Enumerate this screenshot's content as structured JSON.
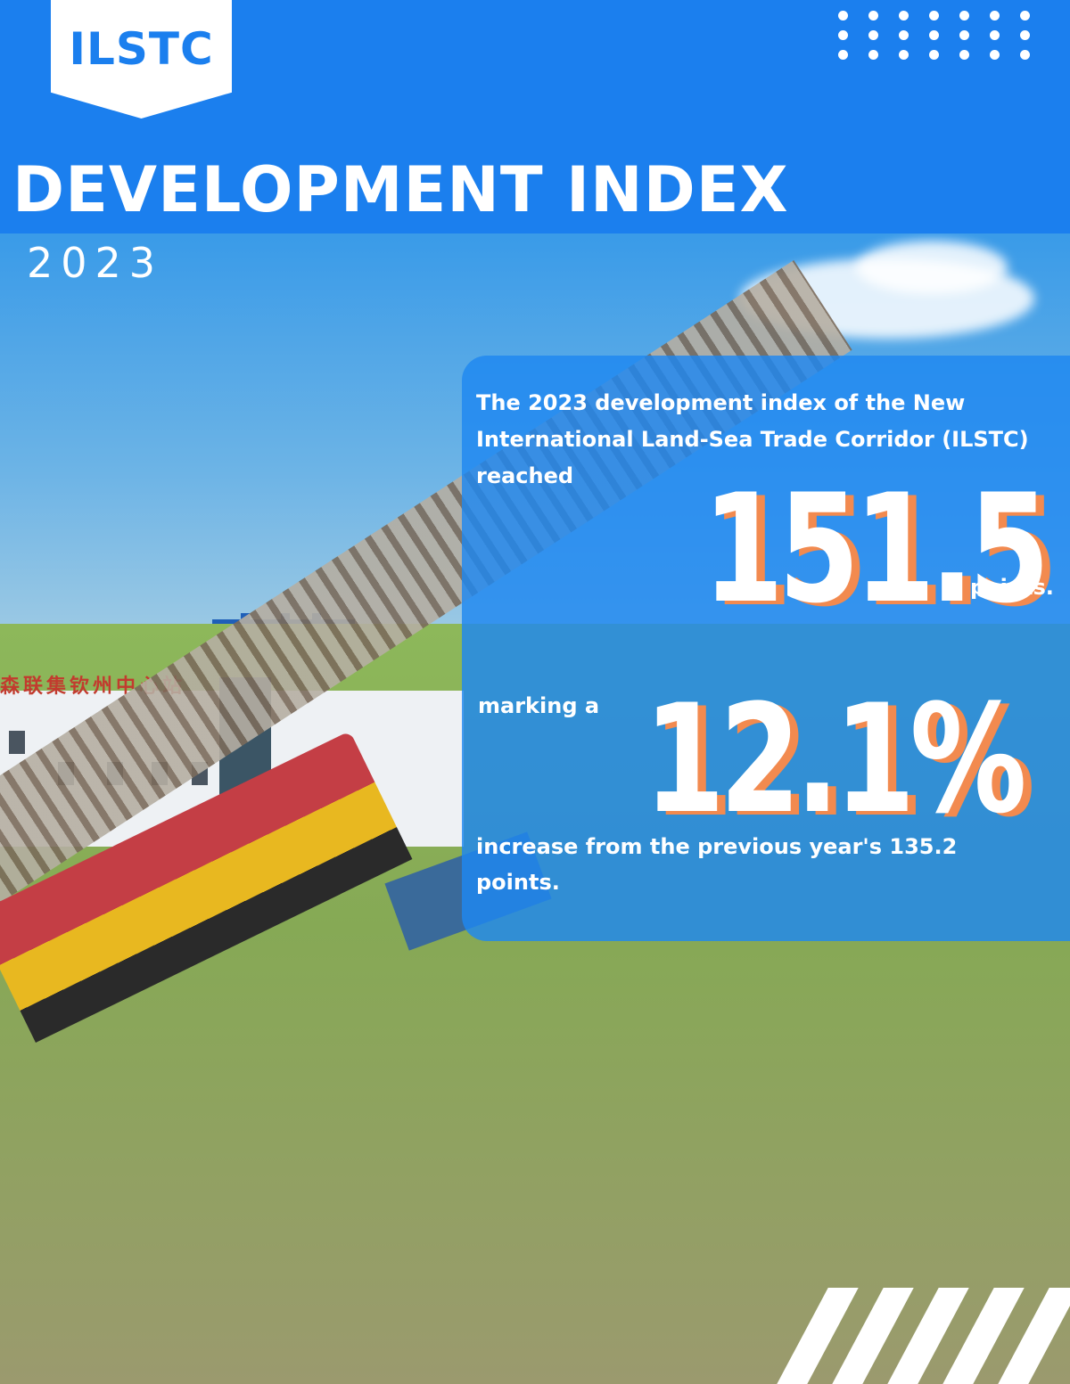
{
  "logo": {
    "text": "ILSTC"
  },
  "header": {
    "title": "DEVELOPMENT INDEX",
    "year": "2023"
  },
  "infobox": {
    "intro": "The 2023 development index of the New International Land-Sea Trade Corridor (ILSTC) reached",
    "index_value": "151.5",
    "index_unit": "points.",
    "growth_prefix": "marking a",
    "growth_value": "12.1%",
    "growth_suffix": "increase from the previous year's 135.2 points."
  },
  "background_scene": {
    "building_sign": "森联集钦州中心站",
    "colors": {
      "brand_blue": "#1b7fee",
      "accent_orange": "#f28a4f",
      "panel_blue": "#1f88f0"
    }
  }
}
